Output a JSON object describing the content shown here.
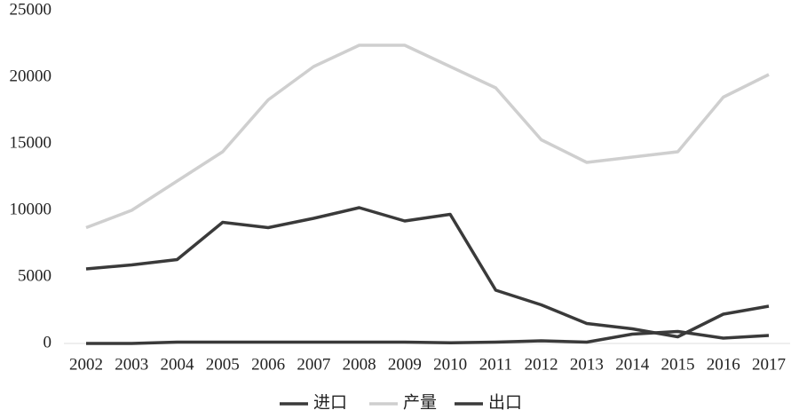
{
  "chart_data": {
    "type": "line",
    "categories": [
      "2002",
      "2003",
      "2004",
      "2005",
      "2006",
      "2007",
      "2008",
      "2009",
      "2010",
      "2011",
      "2012",
      "2013",
      "2014",
      "2015",
      "2016",
      "2017"
    ],
    "series": [
      {
        "name": "进口",
        "color": "#3a3a3a",
        "values": [
          0,
          0,
          100,
          100,
          100,
          100,
          100,
          100,
          50,
          100,
          200,
          100,
          700,
          900,
          400,
          600
        ]
      },
      {
        "name": "产量",
        "color": "#cfcfcf",
        "values": [
          8700,
          10000,
          12200,
          14400,
          18300,
          20800,
          22400,
          22400,
          20800,
          19200,
          15300,
          13600,
          14000,
          14400,
          18500,
          20200
        ]
      },
      {
        "name": "出口",
        "color": "#3a3a3a",
        "values": [
          5600,
          5900,
          6300,
          9100,
          8700,
          9400,
          10200,
          9200,
          9700,
          4000,
          2900,
          1500,
          1100,
          500,
          2200,
          2800
        ]
      }
    ],
    "ylim": [
      0,
      25000
    ],
    "yticks": [
      0,
      5000,
      10000,
      15000,
      20000,
      25000
    ],
    "grid": false
  }
}
